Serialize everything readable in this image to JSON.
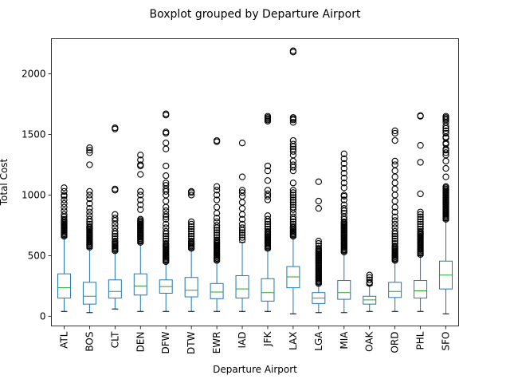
{
  "chart_data": {
    "type": "boxplot",
    "title": "Boxplot grouped by Departure Airport",
    "xlabel": "Departure Airport",
    "ylabel": "Total Cost",
    "ylim": [
      -80,
      2290
    ],
    "yticks": [
      0,
      500,
      1000,
      1500,
      2000
    ],
    "grid": false,
    "legend": "none",
    "colors": {
      "box": "#1f77b4",
      "median": "#2ca02c",
      "outlier": "#000000"
    },
    "categories": [
      "ATL",
      "BOS",
      "CLT",
      "DEN",
      "DFW",
      "DTW",
      "EWR",
      "IAD",
      "JFK",
      "LAX",
      "LGA",
      "MIA",
      "OAK",
      "ORD",
      "PHL",
      "SFO"
    ],
    "boxes": [
      {
        "whislo": 40,
        "q1": 150,
        "med": 235,
        "q3": 350,
        "whishi": 650,
        "fliers": [
          660,
          670,
          680,
          690,
          700,
          710,
          720,
          730,
          740,
          750,
          760,
          770,
          780,
          790,
          800,
          820,
          840,
          870,
          900,
          930,
          960,
          990,
          1000,
          1030,
          1060
        ]
      },
      {
        "whislo": 30,
        "q1": 100,
        "med": 165,
        "q3": 280,
        "whishi": 560,
        "fliers": [
          570,
          580,
          590,
          600,
          610,
          620,
          630,
          640,
          650,
          660,
          670,
          680,
          690,
          700,
          710,
          720,
          730,
          740,
          760,
          780,
          800,
          830,
          860,
          890,
          930,
          970,
          1000,
          1030,
          1250,
          1350,
          1370,
          1390
        ]
      },
      {
        "whislo": 60,
        "q1": 150,
        "med": 205,
        "q3": 300,
        "whishi": 530,
        "fliers": [
          540,
          550,
          560,
          570,
          580,
          590,
          600,
          610,
          620,
          640,
          660,
          680,
          700,
          730,
          760,
          790,
          810,
          840,
          1040,
          1050,
          1545,
          1555
        ]
      },
      {
        "whislo": 40,
        "q1": 175,
        "med": 250,
        "q3": 350,
        "whishi": 600,
        "fliers": [
          610,
          620,
          630,
          640,
          650,
          660,
          670,
          680,
          690,
          700,
          710,
          720,
          730,
          740,
          750,
          760,
          770,
          780,
          790,
          800,
          880,
          920,
          960,
          1000,
          1030,
          1170,
          1240,
          1250,
          1290,
          1330
        ]
      },
      {
        "whislo": 40,
        "q1": 190,
        "med": 245,
        "q3": 300,
        "whishi": 440,
        "fliers": [
          450,
          460,
          470,
          480,
          490,
          500,
          510,
          520,
          530,
          540,
          550,
          560,
          570,
          580,
          590,
          600,
          620,
          640,
          660,
          680,
          700,
          730,
          760,
          800,
          820,
          840,
          870,
          900,
          950,
          1000,
          1030,
          1050,
          1080,
          1100,
          1160,
          1240,
          1380,
          1430,
          1510,
          1520,
          1660,
          1670
        ]
      },
      {
        "whislo": 40,
        "q1": 160,
        "med": 215,
        "q3": 320,
        "whishi": 550,
        "fliers": [
          560,
          570,
          580,
          590,
          600,
          610,
          620,
          640,
          660,
          680,
          700,
          720,
          740,
          760,
          780,
          1000,
          1020,
          1030
        ]
      },
      {
        "whislo": 40,
        "q1": 145,
        "med": 200,
        "q3": 270,
        "whishi": 450,
        "fliers": [
          460,
          470,
          480,
          490,
          500,
          510,
          520,
          530,
          540,
          550,
          560,
          570,
          580,
          590,
          600,
          610,
          620,
          630,
          650,
          670,
          690,
          710,
          730,
          750,
          780,
          810,
          850,
          900,
          960,
          1000,
          1040,
          1070,
          1440,
          1450
        ]
      },
      {
        "whislo": 40,
        "q1": 150,
        "med": 225,
        "q3": 335,
        "whishi": 610,
        "fliers": [
          630,
          650,
          670,
          690,
          710,
          730,
          760,
          800,
          840,
          890,
          940,
          990,
          1020,
          1040,
          1150,
          1430
        ]
      },
      {
        "whislo": 40,
        "q1": 125,
        "med": 195,
        "q3": 310,
        "whishi": 550,
        "fliers": [
          560,
          570,
          580,
          590,
          600,
          610,
          620,
          630,
          640,
          650,
          660,
          670,
          680,
          690,
          700,
          720,
          740,
          760,
          780,
          800,
          830,
          960,
          990,
          1010,
          1040,
          1120,
          1200,
          1240,
          1610,
          1620,
          1630,
          1640,
          1650
        ]
      },
      {
        "whislo": 20,
        "q1": 235,
        "med": 325,
        "q3": 410,
        "whishi": 650,
        "fliers": [
          660,
          670,
          680,
          690,
          700,
          710,
          720,
          730,
          740,
          760,
          780,
          800,
          820,
          850,
          880,
          900,
          920,
          940,
          960,
          980,
          1000,
          1020,
          1040,
          1100,
          1200,
          1230,
          1250,
          1280,
          1330,
          1360,
          1380,
          1400,
          1420,
          1450,
          1600,
          1620,
          1630,
          1640,
          2180,
          2190
        ]
      },
      {
        "whislo": 30,
        "q1": 105,
        "med": 150,
        "q3": 195,
        "whishi": 265,
        "fliers": [
          270,
          280,
          290,
          300,
          310,
          320,
          330,
          340,
          350,
          360,
          370,
          380,
          390,
          400,
          410,
          420,
          430,
          440,
          450,
          460,
          470,
          480,
          490,
          500,
          510,
          520,
          530,
          540,
          550,
          560,
          580,
          600,
          620,
          890,
          950,
          1110
        ]
      },
      {
        "whislo": 30,
        "q1": 140,
        "med": 195,
        "q3": 295,
        "whishi": 525,
        "fliers": [
          530,
          540,
          550,
          560,
          570,
          580,
          590,
          600,
          610,
          620,
          630,
          640,
          650,
          660,
          670,
          680,
          690,
          700,
          710,
          720,
          730,
          740,
          750,
          760,
          770,
          780,
          800,
          820,
          850,
          870,
          890,
          920,
          960,
          990,
          1000,
          1060,
          1100,
          1140,
          1180,
          1220,
          1260,
          1300,
          1340
        ]
      },
      {
        "whislo": 40,
        "q1": 100,
        "med": 135,
        "q3": 165,
        "whishi": 255,
        "fliers": [
          270,
          280,
          300,
          320,
          340
        ]
      },
      {
        "whislo": 40,
        "q1": 155,
        "med": 205,
        "q3": 280,
        "whishi": 455,
        "fliers": [
          460,
          470,
          480,
          490,
          500,
          510,
          520,
          530,
          540,
          550,
          560,
          570,
          580,
          600,
          620,
          640,
          660,
          680,
          700,
          730,
          760,
          790,
          820,
          860,
          900,
          950,
          1000,
          1050,
          1100,
          1150,
          1200,
          1250,
          1280,
          1450,
          1510,
          1530
        ]
      },
      {
        "whislo": 40,
        "q1": 150,
        "med": 210,
        "q3": 295,
        "whishi": 500,
        "fliers": [
          510,
          520,
          530,
          540,
          550,
          560,
          570,
          580,
          590,
          600,
          610,
          620,
          630,
          640,
          650,
          660,
          670,
          680,
          690,
          700,
          720,
          740,
          760,
          780,
          800,
          820,
          840,
          860,
          1010,
          1270,
          1410,
          1650,
          1655
        ]
      },
      {
        "whislo": 20,
        "q1": 225,
        "med": 340,
        "q3": 455,
        "whishi": 790,
        "fliers": [
          800,
          810,
          820,
          830,
          840,
          850,
          860,
          870,
          880,
          890,
          900,
          910,
          920,
          930,
          940,
          950,
          960,
          970,
          980,
          990,
          1000,
          1010,
          1020,
          1030,
          1040,
          1050,
          1060,
          1070,
          1150,
          1220,
          1280,
          1330,
          1350,
          1370,
          1380,
          1420,
          1430,
          1470,
          1480,
          1510,
          1530,
          1550,
          1570,
          1600,
          1620,
          1630,
          1640,
          1650
        ]
      }
    ]
  }
}
